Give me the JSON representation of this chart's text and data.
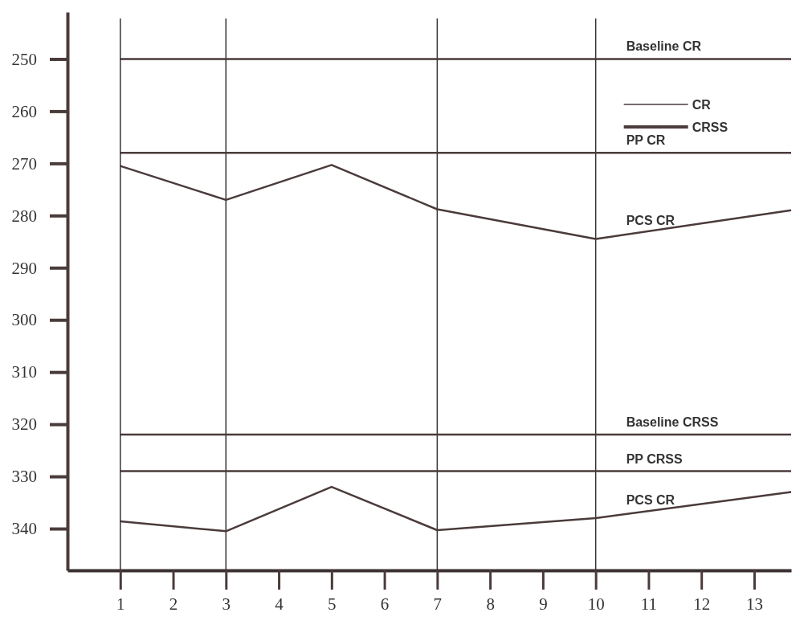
{
  "chart_data": {
    "type": "line",
    "xlim": [
      0,
      13.7
    ],
    "ylim": [
      348,
      241
    ],
    "xticks": [
      1,
      2,
      3,
      4,
      5,
      6,
      7,
      8,
      9,
      10,
      11,
      12,
      13
    ],
    "yticks": [
      250,
      260,
      270,
      280,
      290,
      300,
      310,
      320,
      330,
      340
    ],
    "color": "#4b3b3b",
    "series": [
      {
        "name": "Baseline CR",
        "x": [
          1,
          13.7
        ],
        "values": [
          250,
          250
        ]
      },
      {
        "name": "PP CR",
        "x": [
          1,
          13.7
        ],
        "values": [
          268,
          268
        ]
      },
      {
        "name": "PCS CR",
        "x": [
          1,
          3,
          5,
          7,
          10,
          13.7
        ],
        "values": [
          270.5,
          277,
          270.3,
          278.8,
          284.5,
          279
        ]
      },
      {
        "name": "Baseline CRSS",
        "x": [
          1,
          13.7
        ],
        "values": [
          322,
          322
        ]
      },
      {
        "name": "PP CRSS",
        "x": [
          1,
          13.7
        ],
        "values": [
          329,
          329
        ]
      },
      {
        "name": "PCS CR",
        "x": [
          1,
          3,
          5,
          7,
          10,
          13.7
        ],
        "values": [
          338.6,
          340.5,
          332,
          340.3,
          338,
          333
        ]
      }
    ],
    "ref_lines": [
      {
        "axis": "x",
        "value": 1
      },
      {
        "axis": "x",
        "value": 3
      },
      {
        "axis": "x",
        "value": 7
      },
      {
        "axis": "x",
        "value": 10
      }
    ],
    "annotations": [
      "CR",
      "CRSS"
    ]
  }
}
